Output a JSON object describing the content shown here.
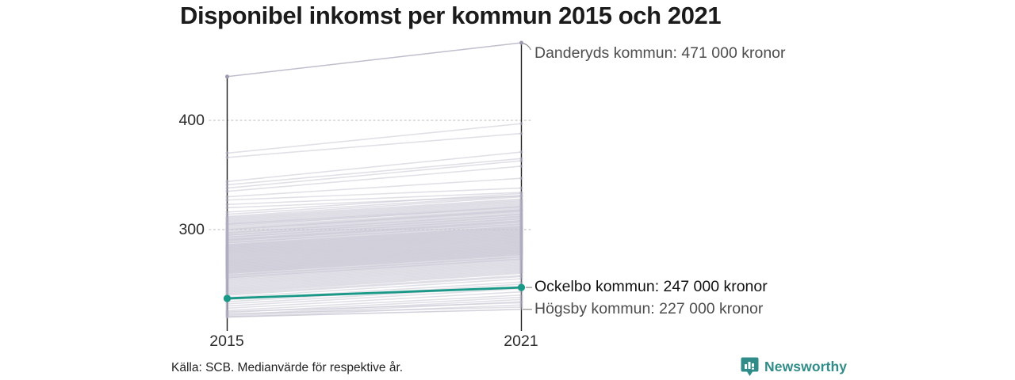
{
  "title": "Disponibel inkomst per kommun 2015 och 2021",
  "source": "Källa: SCB. Medianvärde för respektive år.",
  "brand": {
    "name": "Newsworthy"
  },
  "colors": {
    "accent": "#1a9988",
    "background_line": "#c9c7d4",
    "background_dot": "#aeacbf",
    "outlier_line": "#c0becd",
    "outlier_dot": "#9e9cb1",
    "axis": "#1a1a1a",
    "grid": "#d0d0d0",
    "connector": "#8f8f8f",
    "brand_teal": "#2f8c88"
  },
  "chart_data": {
    "type": "line",
    "subtype": "slopegraph",
    "title": "Disponibel inkomst per kommun 2015 och 2021",
    "x": [
      2015,
      2021
    ],
    "x_labels": [
      "2015",
      "2021"
    ],
    "y_ticks": [
      400,
      300
    ],
    "y_tick_labels": [
      "400",
      "300"
    ],
    "ylim": [
      215,
      475
    ],
    "unit_note": "tusental kronor (axis ticks), labels in kronor",
    "grid": "dotted horizontal at 300 and 400",
    "legend": "none",
    "annotations": [
      {
        "series": "Danderyds kommun",
        "label": "Danderyds kommun: 471 000 kronor",
        "values": [
          440,
          471
        ],
        "highlight": false
      },
      {
        "series": "Ockelbo kommun",
        "label": "Ockelbo kommun: 247 000 kronor",
        "values": [
          237,
          247
        ],
        "highlight": true
      },
      {
        "series": "Högsby kommun",
        "label": "Högsby kommun: 227 000 kronor",
        "values": [
          220,
          227
        ],
        "highlight": false
      }
    ],
    "background_lines": [
      [
        370,
        397
      ],
      [
        366,
        388
      ],
      [
        344,
        371
      ],
      [
        341,
        365
      ],
      [
        338,
        363
      ],
      [
        335,
        358
      ],
      [
        330,
        347
      ],
      [
        327,
        338
      ],
      [
        323,
        334
      ],
      [
        320,
        331
      ],
      [
        316,
        333
      ],
      [
        314,
        331
      ],
      [
        312,
        330
      ],
      [
        311,
        328
      ],
      [
        310,
        327
      ],
      [
        309,
        326
      ],
      [
        308,
        325
      ],
      [
        307,
        324
      ],
      [
        306,
        323
      ],
      [
        305,
        322
      ],
      [
        305,
        321
      ],
      [
        304,
        320
      ],
      [
        303,
        321
      ],
      [
        302,
        319
      ],
      [
        301,
        318
      ],
      [
        300,
        318
      ],
      [
        300,
        317
      ],
      [
        299,
        317
      ],
      [
        298,
        316
      ],
      [
        297,
        315
      ],
      [
        297,
        314
      ],
      [
        296,
        314
      ],
      [
        295,
        313
      ],
      [
        295,
        312
      ],
      [
        294,
        312
      ],
      [
        293,
        311
      ],
      [
        293,
        310
      ],
      [
        292,
        310
      ],
      [
        291,
        309
      ],
      [
        291,
        308
      ],
      [
        290,
        308
      ],
      [
        290,
        307
      ],
      [
        289,
        307
      ],
      [
        288,
        306
      ],
      [
        288,
        305
      ],
      [
        287,
        305
      ],
      [
        286,
        304
      ],
      [
        286,
        303
      ],
      [
        285,
        303
      ],
      [
        285,
        302
      ],
      [
        284,
        302
      ],
      [
        284,
        301
      ],
      [
        283,
        301
      ],
      [
        283,
        300
      ],
      [
        282,
        300
      ],
      [
        282,
        299
      ],
      [
        281,
        299
      ],
      [
        281,
        298
      ],
      [
        280,
        298
      ],
      [
        280,
        297
      ],
      [
        279,
        297
      ],
      [
        279,
        296
      ],
      [
        278,
        296
      ],
      [
        278,
        295
      ],
      [
        277,
        295
      ],
      [
        277,
        294
      ],
      [
        276,
        294
      ],
      [
        276,
        293
      ],
      [
        275,
        293
      ],
      [
        275,
        292
      ],
      [
        274,
        292
      ],
      [
        274,
        291
      ],
      [
        273,
        291
      ],
      [
        273,
        290
      ],
      [
        272,
        290
      ],
      [
        272,
        289
      ],
      [
        271,
        289
      ],
      [
        271,
        288
      ],
      [
        270,
        288
      ],
      [
        270,
        287
      ],
      [
        269,
        287
      ],
      [
        269,
        286
      ],
      [
        268,
        286
      ],
      [
        268,
        285
      ],
      [
        267,
        285
      ],
      [
        267,
        284
      ],
      [
        266,
        284
      ],
      [
        266,
        283
      ],
      [
        265,
        283
      ],
      [
        265,
        282
      ],
      [
        264,
        282
      ],
      [
        264,
        281
      ],
      [
        263,
        281
      ],
      [
        263,
        280
      ],
      [
        262,
        280
      ],
      [
        262,
        279
      ],
      [
        261,
        279
      ],
      [
        261,
        278
      ],
      [
        260,
        278
      ],
      [
        260,
        277
      ],
      [
        259,
        277
      ],
      [
        258,
        276
      ],
      [
        258,
        275
      ],
      [
        257,
        275
      ],
      [
        256,
        274
      ],
      [
        256,
        273
      ],
      [
        255,
        273
      ],
      [
        254,
        272
      ],
      [
        253,
        271
      ],
      [
        252,
        270
      ],
      [
        251,
        269
      ],
      [
        250,
        268
      ],
      [
        249,
        267
      ],
      [
        248,
        266
      ],
      [
        247,
        265
      ],
      [
        246,
        264
      ],
      [
        245,
        263
      ],
      [
        244,
        262
      ],
      [
        243,
        261
      ],
      [
        242,
        260
      ],
      [
        241,
        258
      ],
      [
        240,
        257
      ],
      [
        238,
        255
      ],
      [
        236,
        252
      ],
      [
        234,
        250
      ],
      [
        232,
        248
      ],
      [
        230,
        246
      ],
      [
        228,
        243
      ],
      [
        226,
        240
      ],
      [
        224,
        238
      ],
      [
        222,
        236
      ],
      [
        221,
        234
      ],
      [
        220,
        231
      ],
      [
        223,
        229
      ],
      [
        225,
        233
      ]
    ]
  }
}
